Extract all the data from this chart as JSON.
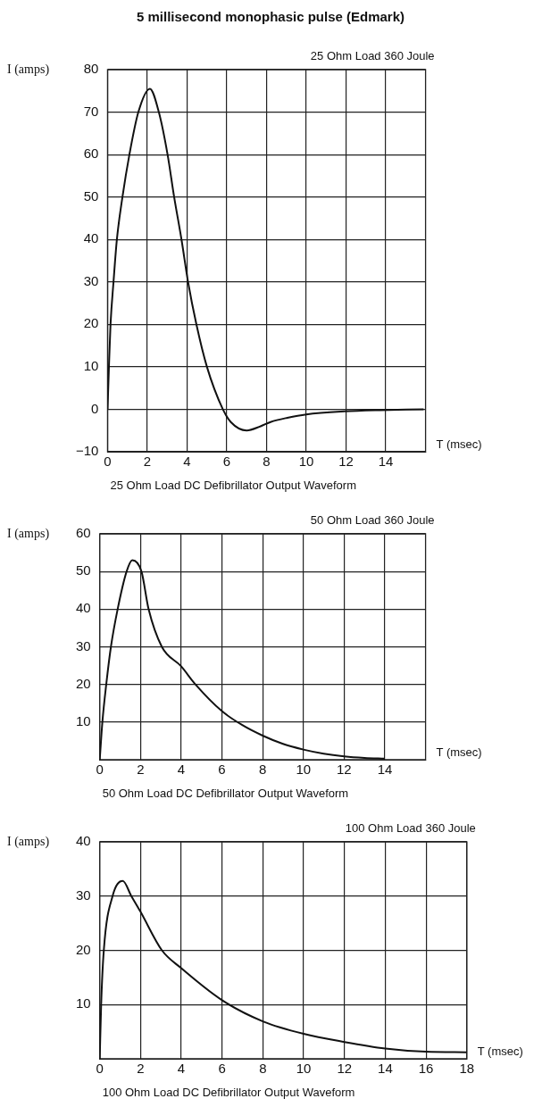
{
  "chart_data": [
    {
      "type": "line",
      "title": "5 millisecond monophasic pulse (Edmark)",
      "subtitle": "25 Ohm Load 360 Joule",
      "xlabel": "T (msec)",
      "ylabel": "I (amps)",
      "annotations": [
        "25 Ohm Load DC Defibrillator Output Waveform"
      ],
      "series": [
        {
          "color": "#111111",
          "x": [
            0,
            0.07,
            0.15,
            0.3,
            0.47,
            0.75,
            1.1,
            1.55,
            2.13,
            2.58,
            3.02,
            3.35,
            3.72,
            4.05,
            4.47,
            5.0,
            5.8,
            6.2,
            7.0,
            7.7,
            8.2,
            9.05,
            10,
            11.9,
            13.7,
            15.9
          ],
          "values": [
            0,
            10,
            20,
            30,
            40,
            50,
            60,
            70,
            75.5,
            70,
            60,
            50,
            40,
            30,
            20,
            10,
            0,
            -3,
            -5,
            -4,
            -3,
            -2,
            -1.2,
            -0.5,
            -0.2,
            0
          ]
        }
      ],
      "xlim": [
        0,
        16
      ],
      "xticks": [
        0,
        2,
        4,
        6,
        8,
        10,
        12,
        14
      ],
      "ylim": [
        -10,
        80
      ],
      "yticks": [
        {
          "value": -10,
          "label": "−10"
        },
        0,
        10,
        20,
        30,
        40,
        50,
        60,
        70,
        80
      ],
      "grid": true
    },
    {
      "type": "line",
      "subtitle": "50 Ohm Load 360 Joule",
      "xlabel": "T (msec)",
      "ylabel": "I (amps)",
      "annotations": [
        "50 Ohm Load DC Defibrillator Output Waveform"
      ],
      "series": [
        {
          "color": "#111111",
          "x": [
            0,
            0.13,
            0.32,
            0.55,
            0.88,
            1.32,
            1.6,
            2.05,
            2.4,
            3.05,
            4,
            4.7,
            6,
            7,
            8,
            9,
            10,
            11,
            12,
            13,
            14
          ],
          "values": [
            0,
            10,
            20,
            30,
            40,
            50,
            53,
            50,
            40,
            30,
            24.8,
            20,
            12.9,
            9.2,
            6.4,
            4.2,
            2.7,
            1.6,
            0.9,
            0.5,
            0.3
          ]
        }
      ],
      "xlim": [
        0,
        16
      ],
      "xticks": [
        0,
        2,
        4,
        6,
        8,
        10,
        12,
        14
      ],
      "ylim": [
        0,
        60
      ],
      "yticks": [
        10,
        20,
        30,
        40,
        50,
        60
      ],
      "grid": true
    },
    {
      "type": "line",
      "subtitle": "100 Ohm Load 360 Joule",
      "xlabel": "T (msec)",
      "ylabel": "I (amps)",
      "annotations": [
        "100 Ohm Load DC Defibrillator Output Waveform"
      ],
      "series": [
        {
          "color": "#111111",
          "x": [
            0,
            0.07,
            0.2,
            0.63,
            1.13,
            1.55,
            2,
            3.05,
            4,
            6,
            8,
            10,
            12,
            14,
            16,
            18
          ],
          "values": [
            0,
            10,
            20,
            30,
            32.8,
            30,
            27.1,
            20,
            16.7,
            10.8,
            6.9,
            4.6,
            3.1,
            1.9,
            1.3,
            1.2
          ]
        }
      ],
      "xlim": [
        0,
        18
      ],
      "xticks": [
        0,
        2,
        4,
        6,
        8,
        10,
        12,
        14,
        16,
        18
      ],
      "ylim": [
        0,
        40
      ],
      "yticks": [
        10,
        20,
        30,
        40
      ],
      "grid": true
    }
  ]
}
